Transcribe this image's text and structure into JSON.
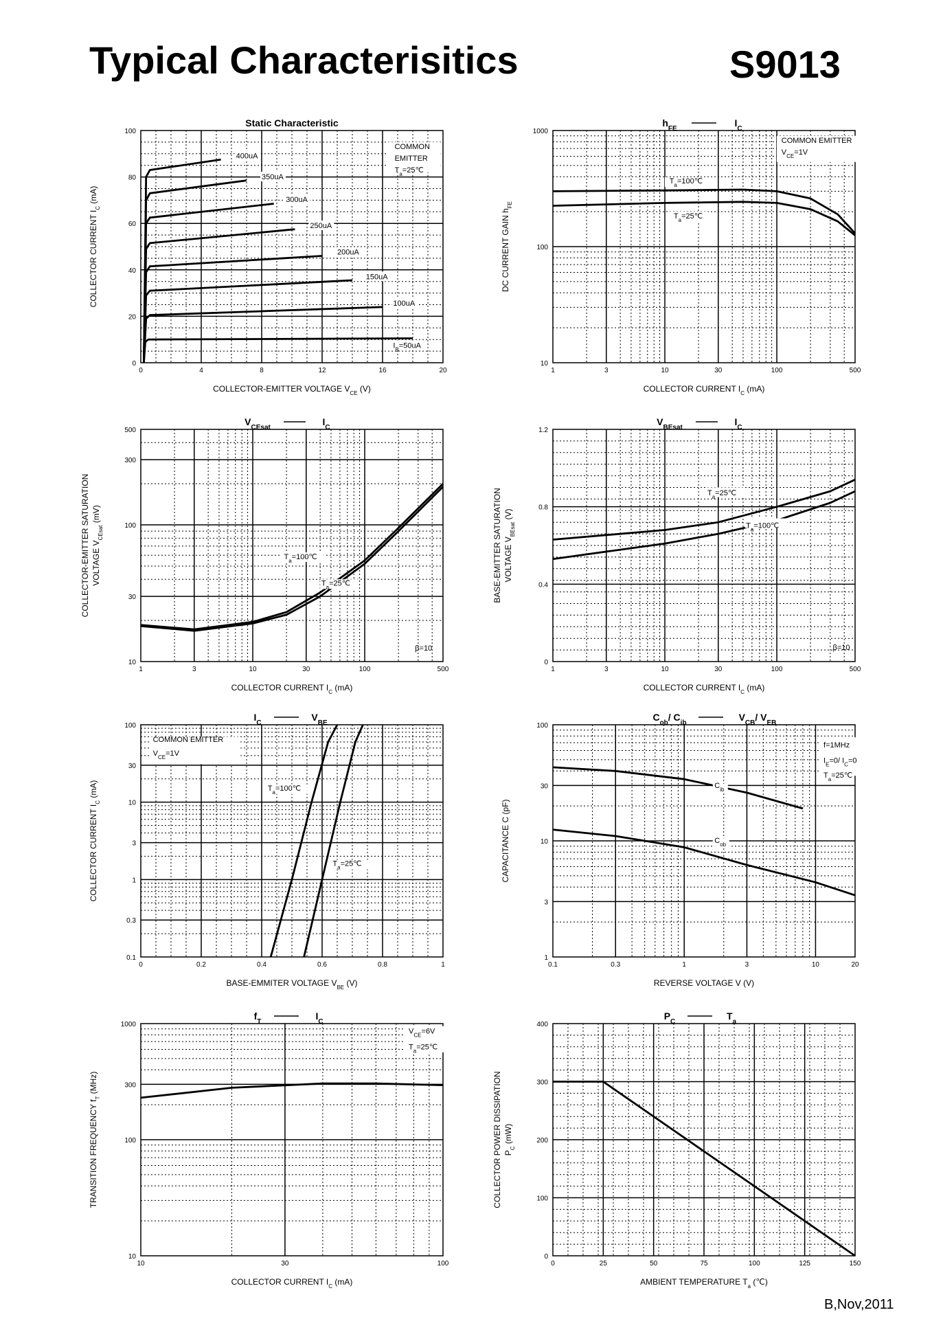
{
  "header": {
    "title": "Typical Characterisitics",
    "part_number": "S9013"
  },
  "footer": {
    "revision": "B,Nov,2011"
  },
  "chart_data": [
    {
      "id": "static",
      "type": "line",
      "title": "Static Characteristic",
      "xscale": "lin",
      "yscale": "lin",
      "xlim": [
        0,
        20
      ],
      "ylim": [
        0,
        100
      ],
      "xticks": [
        0,
        4,
        8,
        12,
        16,
        20
      ],
      "yticks": [
        0,
        20,
        40,
        60,
        80,
        100
      ],
      "xlabel": "COLLECTOR-EMITTER VOLTAGE   V",
      "xlabel_sub": "CE",
      "xlabel_unit": "(V)",
      "ylabel": "COLLECTOR CURRENT   I",
      "ylabel_sub": "C",
      "ylabel_unit": "(mA)",
      "annotations": [
        "COMMON",
        "EMITTER",
        "T=25℃"
      ],
      "series": [
        {
          "name": "I=50uA",
          "points": [
            [
              0.2,
              0
            ],
            [
              0.3,
              9
            ],
            [
              0.5,
              10
            ],
            [
              18,
              10.5
            ]
          ]
        },
        {
          "name": "100uA",
          "points": [
            [
              0.2,
              0
            ],
            [
              0.35,
              19
            ],
            [
              0.6,
              20.5
            ],
            [
              16,
              24
            ]
          ]
        },
        {
          "name": "150uA",
          "points": [
            [
              0.2,
              0
            ],
            [
              0.35,
              29
            ],
            [
              0.6,
              31
            ],
            [
              14,
              35.5
            ]
          ]
        },
        {
          "name": "200uA",
          "points": [
            [
              0.2,
              0
            ],
            [
              0.35,
              39
            ],
            [
              0.6,
              41.5
            ],
            [
              12,
              46
            ]
          ]
        },
        {
          "name": "250uA",
          "points": [
            [
              0.2,
              0
            ],
            [
              0.35,
              49
            ],
            [
              0.6,
              51.5
            ],
            [
              10.2,
              57.5
            ]
          ]
        },
        {
          "name": "300uA",
          "points": [
            [
              0.2,
              0
            ],
            [
              0.35,
              60
            ],
            [
              0.6,
              62.5
            ],
            [
              8.8,
              68.5
            ]
          ]
        },
        {
          "name": "350uA",
          "points": [
            [
              0.2,
              0
            ],
            [
              0.35,
              70
            ],
            [
              0.6,
              73
            ],
            [
              7,
              78.5
            ]
          ]
        },
        {
          "name": "400uA",
          "points": [
            [
              0.2,
              0
            ],
            [
              0.35,
              80
            ],
            [
              0.6,
              83
            ],
            [
              5.3,
              87.5
            ]
          ]
        }
      ]
    },
    {
      "id": "hfe",
      "type": "line",
      "title": "h",
      "title_sub": "FE",
      "title_right": "I",
      "title_right_sub": "C",
      "xscale": "log",
      "yscale": "log",
      "xlim": [
        1,
        500
      ],
      "ylim": [
        10,
        1000
      ],
      "xticks": [
        1,
        3,
        10,
        30,
        100,
        500
      ],
      "yticks": [
        10,
        100,
        1000
      ],
      "xlabel": "COLLECTOR CURRENT   I",
      "xlabel_sub": "C",
      "xlabel_unit": "(mA)",
      "ylabel": "DC CURRENT GAIN   h",
      "ylabel_sub": "FE",
      "annotations": [
        "COMMON EMITTER",
        "V=1V"
      ],
      "series": [
        {
          "name": "T=100℃",
          "points": [
            [
              1,
              300
            ],
            [
              10,
              305
            ],
            [
              50,
              310
            ],
            [
              100,
              300
            ],
            [
              200,
              260
            ],
            [
              350,
              190
            ],
            [
              500,
              130
            ]
          ]
        },
        {
          "name": "T=25℃",
          "points": [
            [
              1,
              225
            ],
            [
              10,
              238
            ],
            [
              50,
              243
            ],
            [
              100,
              238
            ],
            [
              200,
              210
            ],
            [
              350,
              165
            ],
            [
              500,
              125
            ]
          ]
        }
      ]
    },
    {
      "id": "vcesat",
      "type": "line",
      "title": "V",
      "title_sub": "CEsat",
      "title_right": "I",
      "title_right_sub": "C",
      "xscale": "log",
      "yscale": "log",
      "xlim": [
        1,
        500
      ],
      "ylim": [
        10,
        500
      ],
      "xticks": [
        1,
        3,
        10,
        30,
        100,
        500
      ],
      "yticks": [
        10,
        30,
        100,
        300,
        500
      ],
      "xlabel": "COLLECTOR CURRENT   I",
      "xlabel_sub": "C",
      "xlabel_unit": "(mA)",
      "ylabel": "COLLECTOR-EMITTER SATURATION",
      "ylabel2": "VOLTAGE   V",
      "ylabel_sub": "CEsat",
      "ylabel_unit": "(mV)",
      "annotations": [
        "β=10"
      ],
      "series": [
        {
          "name": "T=100℃",
          "points": [
            [
              1,
              18.5
            ],
            [
              3,
              17.2
            ],
            [
              10,
              19.5
            ],
            [
              20,
              23
            ],
            [
              40,
              32
            ],
            [
              100,
              55
            ],
            [
              200,
              95
            ],
            [
              500,
              200
            ]
          ]
        },
        {
          "name": "T=25℃",
          "points": [
            [
              1,
              18.2
            ],
            [
              3,
              16.8
            ],
            [
              10,
              19
            ],
            [
              20,
              22
            ],
            [
              40,
              30
            ],
            [
              100,
              52
            ],
            [
              200,
              90
            ],
            [
              500,
              190
            ]
          ]
        }
      ]
    },
    {
      "id": "vbesat",
      "type": "line",
      "title": "V",
      "title_sub": "BEsat",
      "title_right": "I",
      "title_right_sub": "C",
      "xscale": "log",
      "yscale": "lin",
      "xlim": [
        1,
        500
      ],
      "ylim": [
        0,
        1.2
      ],
      "xticks": [
        1,
        3,
        10,
        30,
        100,
        500
      ],
      "yticks": [
        0.0,
        0.4,
        0.8,
        1.2
      ],
      "xlabel": "COLLECTOR CURRENT   I",
      "xlabel_sub": "C",
      "xlabel_unit": "(mA)",
      "ylabel": "BASE-EMITTER SATURATION",
      "ylabel2": "VOLTAGE   V",
      "ylabel_sub": "BEsat",
      "ylabel_unit": "(V)",
      "annotations": [
        "β=10"
      ],
      "series": [
        {
          "name": "T=25℃",
          "points": [
            [
              1,
              0.63
            ],
            [
              10,
              0.68
            ],
            [
              30,
              0.72
            ],
            [
              100,
              0.8
            ],
            [
              300,
              0.88
            ],
            [
              500,
              0.94
            ]
          ]
        },
        {
          "name": "T=100℃",
          "points": [
            [
              1,
              0.53
            ],
            [
              10,
              0.61
            ],
            [
              30,
              0.66
            ],
            [
              100,
              0.73
            ],
            [
              300,
              0.82
            ],
            [
              500,
              0.88
            ]
          ]
        }
      ]
    },
    {
      "id": "icvbe",
      "type": "line",
      "title": "I",
      "title_sub": "C",
      "title_right": "V",
      "title_right_sub": "BE",
      "xscale": "lin",
      "yscale": "log",
      "xlim": [
        0,
        1.0
      ],
      "ylim": [
        0.1,
        100
      ],
      "xticks": [
        0.0,
        0.2,
        0.4,
        0.6,
        0.8,
        1.0
      ],
      "yticks": [
        0.1,
        0.3,
        1,
        3,
        10,
        30,
        100
      ],
      "xlabel": "BASE-EMMITER VOLTAGE   V",
      "xlabel_sub": "BE",
      "xlabel_unit": "(V)",
      "ylabel": "COLLECTOR CURRENT   I",
      "ylabel_sub": "C",
      "ylabel_unit": "(mA)",
      "annotations": [
        "COMMON EMITTER",
        "V=1V"
      ],
      "series": [
        {
          "name": "T=100℃",
          "points": [
            [
              0.43,
              0.1
            ],
            [
              0.5,
              1
            ],
            [
              0.565,
              10
            ],
            [
              0.62,
              60
            ],
            [
              0.65,
              100
            ]
          ]
        },
        {
          "name": "T=25℃",
          "points": [
            [
              0.54,
              0.1
            ],
            [
              0.6,
              1
            ],
            [
              0.66,
              10
            ],
            [
              0.71,
              60
            ],
            [
              0.735,
              100
            ]
          ]
        }
      ]
    },
    {
      "id": "cob",
      "type": "line",
      "title": "C",
      "title_sub": "ob",
      "title_mid": "/ C",
      "title_mid_sub": "ib",
      "title_right": "V",
      "title_right_sub": "CB",
      "title_right2": "/ V",
      "title_right2_sub": "EB",
      "xscale": "log",
      "yscale": "log",
      "xlim": [
        0.1,
        20
      ],
      "ylim": [
        1,
        100
      ],
      "xticks": [
        0.1,
        0.3,
        1,
        3,
        10,
        20
      ],
      "yticks": [
        1,
        3,
        10,
        30,
        100
      ],
      "xlabel": "REVERSE VOLTAGE   V",
      "xlabel_unit": "(V)",
      "ylabel": "CAPACITANCE   C",
      "ylabel_unit": "(pF)",
      "annotations": [
        "f=1MHz",
        "I=0/ I=0",
        "T=25℃"
      ],
      "series": [
        {
          "name": "C",
          "sub": "ib",
          "points": [
            [
              0.1,
              43
            ],
            [
              0.3,
              40
            ],
            [
              1,
              34
            ],
            [
              3,
              26
            ],
            [
              8,
              19
            ]
          ]
        },
        {
          "name": "C",
          "sub": "ob",
          "points": [
            [
              0.1,
              12.5
            ],
            [
              0.3,
              11
            ],
            [
              1,
              8.8
            ],
            [
              3,
              6.2
            ],
            [
              10,
              4.4
            ],
            [
              20,
              3.4
            ]
          ]
        }
      ]
    },
    {
      "id": "ft",
      "type": "line",
      "title": "f",
      "title_sub": "T",
      "title_right": "I",
      "title_right_sub": "C",
      "xscale": "log",
      "yscale": "log",
      "xlim": [
        10,
        100
      ],
      "ylim": [
        10,
        1000
      ],
      "xticks": [
        10,
        30,
        100
      ],
      "yticks": [
        10,
        100,
        300,
        1000
      ],
      "xlabel": "COLLECTOR CURRENT   I",
      "xlabel_sub": "C",
      "xlabel_unit": "(mA)",
      "ylabel": "TRANSITION FREQUENCY   f",
      "ylabel_sub": "T",
      "ylabel_unit": "(MHz)",
      "annotations": [
        "V=6V",
        "T=25℃"
      ],
      "series": [
        {
          "name": "fT",
          "points": [
            [
              10,
              230
            ],
            [
              20,
              280
            ],
            [
              40,
              305
            ],
            [
              60,
              305
            ],
            [
              100,
              295
            ]
          ]
        }
      ]
    },
    {
      "id": "pc",
      "type": "line",
      "title": "P",
      "title_sub": "C",
      "title_right": "T",
      "title_right_sub": "a",
      "xscale": "lin",
      "yscale": "lin",
      "xlim": [
        0,
        150
      ],
      "ylim": [
        0,
        400
      ],
      "xticks": [
        0,
        25,
        50,
        75,
        100,
        125,
        150
      ],
      "yticks": [
        0,
        100,
        200,
        300,
        400
      ],
      "xlabel": "AMBIENT TEMPERATURE   T",
      "xlabel_sub": "a",
      "xlabel_unit": "(℃)",
      "ylabel": "COLLECTOR POWER DISSIPATION",
      "ylabel2": "P",
      "ylabel_sub": "C",
      "ylabel_unit": "(mW)",
      "series": [
        {
          "name": "Pc",
          "points": [
            [
              0,
              300
            ],
            [
              25,
              300
            ],
            [
              150,
              0
            ]
          ]
        }
      ]
    }
  ]
}
